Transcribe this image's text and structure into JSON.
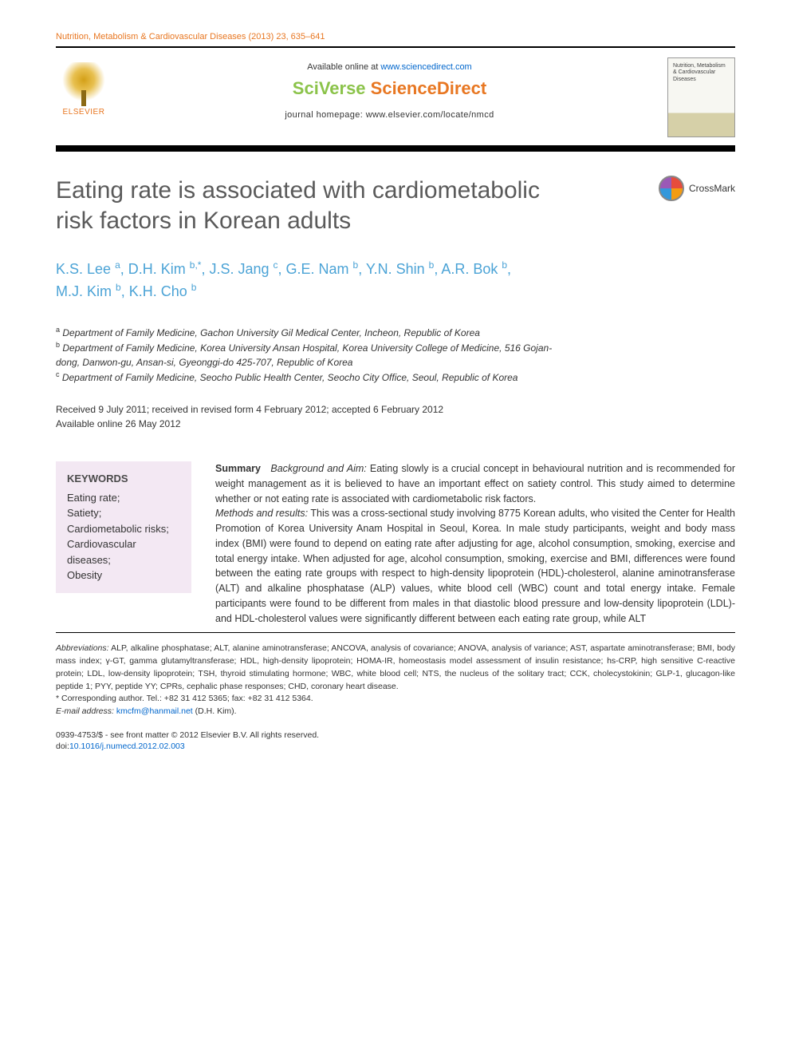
{
  "journal_ref": "Nutrition, Metabolism & Cardiovascular Diseases (2013) 23, 635–641",
  "header": {
    "publisher": "ELSEVIER",
    "available_prefix": "Available online at ",
    "available_url": "www.sciencedirect.com",
    "brand_left": "SciVerse ",
    "brand_right": "ScienceDirect",
    "homepage_line": "journal homepage: www.elsevier.com/locate/nmcd",
    "cover_text": "Nutrition, Metabolism & Cardiovascular Diseases"
  },
  "crossmark": "CrossMark",
  "title": "Eating rate is associated with cardiometabolic risk factors in Korean adults",
  "authors_html": "K.S. Lee <sup>a</sup>, D.H. Kim <sup>b,*</sup>, J.S. Jang <sup>c</sup>, G.E. Nam <sup>b</sup>, Y.N. Shin <sup>b</sup>, A.R. Bok <sup>b</sup>, M.J. Kim <sup>b</sup>, K.H. Cho <sup>b</sup>",
  "affiliations": {
    "a": "Department of Family Medicine, Gachon University Gil Medical Center, Incheon, Republic of Korea",
    "b": "Department of Family Medicine, Korea University Ansan Hospital, Korea University College of Medicine, 516 Gojan-dong, Danwon-gu, Ansan-si, Gyeonggi-do 425-707, Republic of Korea",
    "c": "Department of Family Medicine, Seocho Public Health Center, Seocho City Office, Seoul, Republic of Korea"
  },
  "dates": {
    "line1": "Received 9 July 2011; received in revised form 4 February 2012; accepted 6 February 2012",
    "line2": "Available online 26 May 2012"
  },
  "keywords": {
    "heading": "KEYWORDS",
    "items": [
      "Eating rate;",
      "Satiety;",
      "Cardiometabolic risks;",
      "Cardiovascular diseases;",
      "Obesity"
    ]
  },
  "abstract": {
    "summary_label": "Summary",
    "s1_label": "Background and Aim:",
    "s1_text": " Eating slowly is a crucial concept in behavioural nutrition and is recommended for weight management as it is believed to have an important effect on satiety control. This study aimed to determine whether or not eating rate is associated with cardiometabolic risk factors.",
    "s2_label": "Methods and results:",
    "s2_text": " This was a cross-sectional study involving 8775 Korean adults, who visited the Center for Health Promotion of Korea University Anam Hospital in Seoul, Korea. In male study participants, weight and body mass index (BMI) were found to depend on eating rate after adjusting for age, alcohol consumption, smoking, exercise and total energy intake. When adjusted for age, alcohol consumption, smoking, exercise and BMI, differences were found between the eating rate groups with respect to high-density lipoprotein (HDL)-cholesterol, alanine aminotransferase (ALT) and alkaline phosphatase (ALP) values, white blood cell (WBC) count and total energy intake. Female participants were found to be different from males in that diastolic blood pressure and low-density lipoprotein (LDL)- and HDL-cholesterol values were significantly different between each eating rate group, while ALT"
  },
  "footnotes": {
    "abbr_label": "Abbreviations:",
    "abbr_text": " ALP, alkaline phosphatase; ALT, alanine aminotransferase; ANCOVA, analysis of covariance; ANOVA, analysis of variance; AST, aspartate aminotransferase; BMI, body mass index; γ-GT, gamma glutamyltransferase; HDL, high-density lipoprotein; HOMA-IR, homeostasis model assessment of insulin resistance; hs-CRP, high sensitive C-reactive protein; LDL, low-density lipoprotein; TSH, thyroid stimulating hormone; WBC, white blood cell; NTS, the nucleus of the solitary tract; CCK, cholecystokinin; GLP-1, glucagon-like peptide 1; PYY, peptide YY; CPRs, cephalic phase responses; CHD, coronary heart disease.",
    "corr": "* Corresponding author. Tel.: +82 31 412 5365; fax: +82 31 412 5364.",
    "email_label": "E-mail address:",
    "email": "kmcfm@hanmail.net",
    "email_who": " (D.H. Kim)."
  },
  "copyright": {
    "line1": "0939-4753/$ - see front matter © 2012 Elsevier B.V. All rights reserved.",
    "doi_prefix": "doi:",
    "doi": "10.1016/j.numecd.2012.02.003"
  },
  "colors": {
    "accent_orange": "#e87722",
    "author_blue": "#4ba3d6",
    "link_blue": "#0066cc",
    "kw_bg": "#f3e8f3",
    "title_gray": "#5a5a5a",
    "sv_green": "#8bc34a"
  }
}
